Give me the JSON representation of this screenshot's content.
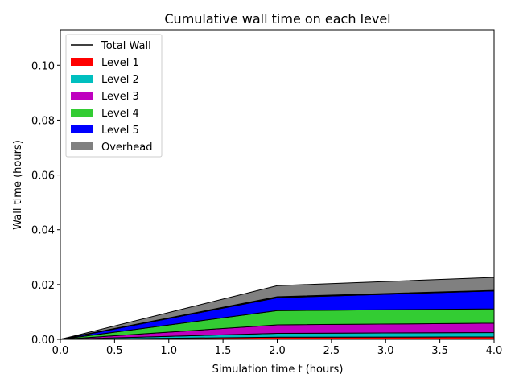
{
  "chart_data": {
    "type": "area",
    "title": "Cumulative wall time on each level",
    "xlabel": "Simulation time t (hours)",
    "ylabel": "Wall time (hours)",
    "x": [
      0.0,
      2.0,
      4.0
    ],
    "xlim": [
      0.0,
      4.0
    ],
    "ylim": [
      0.0,
      0.113
    ],
    "xticks": [
      "0.0",
      "0.5",
      "1.0",
      "1.5",
      "2.0",
      "2.5",
      "3.0",
      "3.5",
      "4.0"
    ],
    "yticks": [
      "0.00",
      "0.02",
      "0.04",
      "0.06",
      "0.08",
      "0.10"
    ],
    "legend_position": "top-left",
    "grid": false,
    "stacked": true,
    "total": {
      "name": "Total Wall",
      "color": "#000000",
      "values": [
        0.0,
        0.0155,
        0.0178
      ]
    },
    "series": [
      {
        "name": "Level 1",
        "color": "#ff0000",
        "values": [
          0.0,
          0.0008,
          0.0009
        ]
      },
      {
        "name": "Level 2",
        "color": "#00bfbf",
        "values": [
          0.0,
          0.0014,
          0.0016
        ]
      },
      {
        "name": "Level 3",
        "color": "#bf00bf",
        "values": [
          0.0,
          0.0031,
          0.0034
        ]
      },
      {
        "name": "Level 4",
        "color": "#33cc33",
        "values": [
          0.0,
          0.0052,
          0.0052
        ]
      },
      {
        "name": "Level 5",
        "color": "#0000ff",
        "values": [
          0.0,
          0.0047,
          0.0066
        ]
      },
      {
        "name": "Overhead",
        "color": "#808080",
        "values": [
          0.0,
          0.0044,
          0.0049
        ]
      }
    ]
  }
}
